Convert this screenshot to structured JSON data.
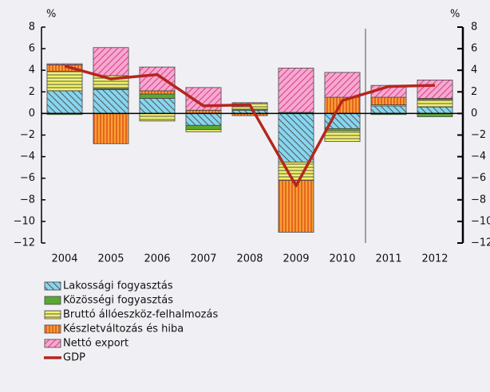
{
  "chart_data": {
    "type": "bar",
    "yaxis_label": "%",
    "y2axis_label": "%",
    "categories": [
      "2004",
      "2005",
      "2006",
      "2007",
      "2008",
      "2009",
      "2010",
      "2011",
      "2012"
    ],
    "series": [
      {
        "name": "Lakossági fogyasztás",
        "color": "#86d6f0",
        "values": [
          2.1,
          2.2,
          1.4,
          -1.1,
          0.3,
          -4.5,
          -1.4,
          0.7,
          0.6
        ]
      },
      {
        "name": "Közösségi fogyasztás",
        "color": "#5aa832",
        "values": [
          -0.1,
          0.1,
          0.4,
          -0.4,
          0.1,
          0.1,
          -0.2,
          -0.1,
          -0.3
        ]
      },
      {
        "name": "Bruttó állóeszköz-felhalmozás",
        "color": "#f2f26a",
        "values": [
          1.8,
          1.2,
          -0.7,
          -0.2,
          0.5,
          -1.7,
          -1.0,
          0.1,
          0.7
        ]
      },
      {
        "name": "Készletváltozás és hiba",
        "color": "#f7a035",
        "values": [
          0.6,
          -2.8,
          0.3,
          0.3,
          -0.2,
          -4.8,
          1.5,
          0.7,
          0.1
        ]
      },
      {
        "name": "Nettó export",
        "color": "#f6a8d2",
        "values": [
          0.1,
          2.6,
          2.2,
          2.1,
          0.1,
          4.1,
          2.3,
          1.1,
          1.7
        ]
      },
      {
        "name": "GDP",
        "color": "#b5261e",
        "type": "line",
        "values": [
          4.4,
          3.2,
          3.6,
          0.7,
          0.8,
          -6.7,
          1.2,
          2.5,
          2.6
        ]
      }
    ],
    "ylim": [
      -12,
      8
    ],
    "yticks": [
      {
        "value": -12,
        "label": "−12"
      },
      {
        "value": -10,
        "label": "−10"
      },
      {
        "value": -8,
        "label": "−8"
      },
      {
        "value": -6,
        "label": "−6"
      },
      {
        "value": -4,
        "label": "−4"
      },
      {
        "value": -2,
        "label": "−2"
      },
      0,
      2,
      4,
      6,
      8
    ],
    "y2lim": [
      -12,
      8
    ],
    "y2ticks": [
      {
        "value": -12,
        "label": "−12"
      },
      {
        "value": -10,
        "label": "−10"
      },
      {
        "value": -8,
        "label": "−8"
      },
      {
        "value": -6,
        "label": "−6"
      },
      {
        "value": -4,
        "label": "−4"
      },
      {
        "value": -2,
        "label": "−2"
      },
      0,
      2,
      4,
      6,
      8
    ],
    "legend": "bottom-left"
  }
}
